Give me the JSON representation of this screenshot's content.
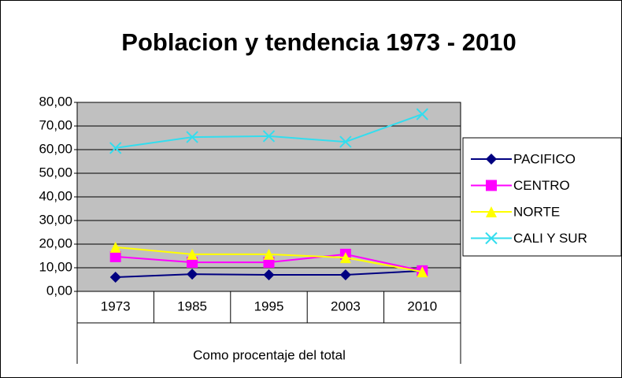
{
  "chart_data": {
    "type": "line",
    "title": "Poblacion y tendencia 1973 - 2010",
    "x_label": "Como procentaje del total",
    "categories": [
      "1973",
      "1985",
      "1995",
      "2003",
      "2010"
    ],
    "series": [
      {
        "name": "PACIFICO",
        "color": "#000080",
        "marker": "diamond",
        "values": [
          6.0,
          7.3,
          7.0,
          7.0,
          8.7
        ]
      },
      {
        "name": "CENTRO",
        "color": "#ff00ff",
        "marker": "square",
        "values": [
          14.7,
          12.3,
          12.3,
          15.7,
          8.7
        ]
      },
      {
        "name": "NORTE",
        "color": "#ffff00",
        "marker": "triangle",
        "values": [
          18.7,
          15.7,
          15.7,
          14.3,
          8.3
        ]
      },
      {
        "name": "CALI Y SUR",
        "color": "#33ddee",
        "marker": "x",
        "values": [
          60.7,
          65.3,
          65.7,
          63.3,
          75.0
        ]
      }
    ],
    "ylim": [
      0,
      80
    ],
    "yticks": [
      {
        "value": 0,
        "label": "0,00"
      },
      {
        "value": 10,
        "label": "10,00"
      },
      {
        "value": 20,
        "label": "20,00"
      },
      {
        "value": 30,
        "label": "30,00"
      },
      {
        "value": 40,
        "label": "40,00"
      },
      {
        "value": 50,
        "label": "50,00"
      },
      {
        "value": 60,
        "label": "60,00"
      },
      {
        "value": 70,
        "label": "70,00"
      },
      {
        "value": 80,
        "label": "80,00"
      }
    ],
    "grid": true,
    "legend": "right"
  }
}
